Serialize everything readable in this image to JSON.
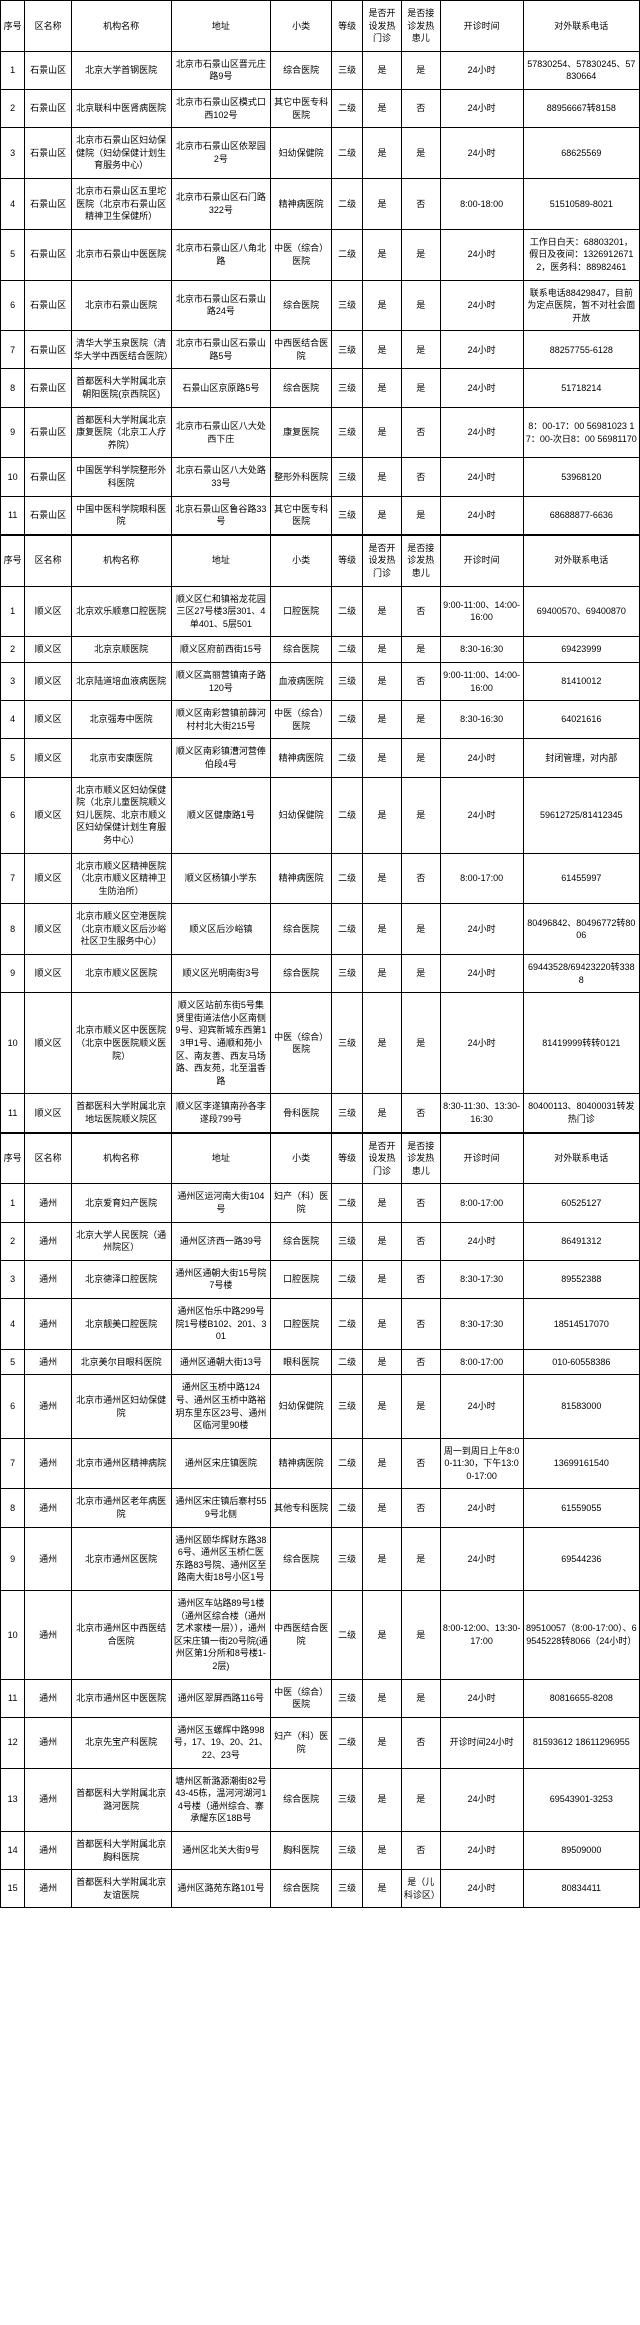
{
  "columns": {
    "num": "序号",
    "district": "区名称",
    "institution": "机构名称",
    "address": "地址",
    "category": "小类",
    "level": "等级",
    "fever_open": "是否开设发热门诊",
    "fever_rx": "是否接诊发热患儿",
    "hours": "开诊时间",
    "tel": "对外联系电话"
  },
  "tables": [
    {
      "rows": [
        {
          "n": "1",
          "d": "石景山区",
          "i": "北京大学首钢医院",
          "a": "北京市石景山区晋元庄路9号",
          "c": "综合医院",
          "l": "三级",
          "f1": "是",
          "f2": "是",
          "h": "24小时",
          "t": "57830254、57830245、57830664"
        },
        {
          "n": "2",
          "d": "石景山区",
          "i": "北京联科中医肾病医院",
          "a": "北京市石景山区模式口西102号",
          "c": "其它中医专科医院",
          "l": "二级",
          "f1": "是",
          "f2": "否",
          "h": "24小时",
          "t": "88956667转8158"
        },
        {
          "n": "3",
          "d": "石景山区",
          "i": "北京市石景山区妇幼保健院（妇幼保健计划生育服务中心）",
          "a": "北京市石景山区依翠园2号",
          "c": "妇幼保健院",
          "l": "二级",
          "f1": "是",
          "f2": "是",
          "h": "24小时",
          "t": "68625569"
        },
        {
          "n": "4",
          "d": "石景山区",
          "i": "北京市石景山区五里坨医院（北京市石景山区精神卫生保健所）",
          "a": "北京市石景山区石门路322号",
          "c": "精神病医院",
          "l": "二级",
          "f1": "是",
          "f2": "否",
          "h": "8:00-18:00",
          "t": "51510589-8021"
        },
        {
          "n": "5",
          "d": "石景山区",
          "i": "北京市石景山中医医院",
          "a": "北京市石景山区八角北路",
          "c": "中医（综合）医院",
          "l": "二级",
          "f1": "是",
          "f2": "是",
          "h": "24小时",
          "t": "工作日白天：68803201，假日及夜间：13269126712，医务科：88982461"
        },
        {
          "n": "6",
          "d": "石景山区",
          "i": "北京市石景山医院",
          "a": "北京市石景山区石景山路24号",
          "c": "综合医院",
          "l": "三级",
          "f1": "是",
          "f2": "是",
          "h": "24小时",
          "t": "联系电话88429847，目前为定点医院，暂不对社会面开放"
        },
        {
          "n": "7",
          "d": "石景山区",
          "i": "清华大学玉泉医院（清华大学中西医结合医院）",
          "a": "北京市石景山区石景山路5号",
          "c": "中西医结合医院",
          "l": "三级",
          "f1": "是",
          "f2": "是",
          "h": "24小时",
          "t": "88257755-6128"
        },
        {
          "n": "8",
          "d": "石景山区",
          "i": "首都医科大学附属北京朝阳医院(京西院区)",
          "a": "石景山区京原路5号",
          "c": "综合医院",
          "l": "三级",
          "f1": "是",
          "f2": "是",
          "h": "24小时",
          "t": "51718214"
        },
        {
          "n": "9",
          "d": "石景山区",
          "i": "首都医科大学附属北京康复医院（北京工人疗养院）",
          "a": "北京市石景山区八大处西下庄",
          "c": "康复医院",
          "l": "三级",
          "f1": "是",
          "f2": "否",
          "h": "24小时",
          "t": "8：00-17：00 56981023 17：00-次日8：00 56981170"
        },
        {
          "n": "10",
          "d": "石景山区",
          "i": "中国医学科学院整形外科医院",
          "a": "北京石景山区八大处路33号",
          "c": "整形外科医院",
          "l": "三级",
          "f1": "是",
          "f2": "否",
          "h": "24小时",
          "t": "53968120"
        },
        {
          "n": "11",
          "d": "石景山区",
          "i": "中国中医科学院眼科医院",
          "a": "北京石景山区鲁谷路33号",
          "c": "其它中医专科医院",
          "l": "三级",
          "f1": "是",
          "f2": "是",
          "h": "24小时",
          "t": "68688877-6636"
        }
      ]
    },
    {
      "rows": [
        {
          "n": "1",
          "d": "顺义区",
          "i": "北京欢乐顺意口腔医院",
          "a": "顺义区仁和镇裕龙花园三区27号楼3层301、4单401、5层501",
          "c": "口腔医院",
          "l": "二级",
          "f1": "是",
          "f2": "否",
          "h": "9:00-11:00、14:00-16:00",
          "t": "69400570、69400870"
        },
        {
          "n": "2",
          "d": "顺义区",
          "i": "北京京顺医院",
          "a": "顺义区府前西街15号",
          "c": "综合医院",
          "l": "二级",
          "f1": "是",
          "f2": "是",
          "h": "8:30-16:30",
          "t": "69423999"
        },
        {
          "n": "3",
          "d": "顺义区",
          "i": "北京陆道培血液病医院",
          "a": "顺义区高丽营镇南子路120号",
          "c": "血液病医院",
          "l": "三级",
          "f1": "是",
          "f2": "否",
          "h": "9:00-11:00、14:00-16:00",
          "t": "81410012"
        },
        {
          "n": "4",
          "d": "顺义区",
          "i": "北京强寿中医院",
          "a": "顺义区南彩营镇前薛河村村北大街215号",
          "c": "中医（综合）医院",
          "l": "二级",
          "f1": "是",
          "f2": "是",
          "h": "8:30-16:30",
          "t": "64021616"
        },
        {
          "n": "5",
          "d": "顺义区",
          "i": "北京市安康医院",
          "a": "顺义区南彩镇漕河营俸伯段4号",
          "c": "精神病医院",
          "l": "二级",
          "f1": "是",
          "f2": "是",
          "h": "24小时",
          "t": "封闭管理，对内部"
        },
        {
          "n": "6",
          "d": "顺义区",
          "i": "北京市顺义区妇幼保健院（北京儿童医院顺义妇儿医院、北京市顺义区妇幼保健计划生育服务中心）",
          "a": "顺义区健康路1号",
          "c": "妇幼保健院",
          "l": "二级",
          "f1": "是",
          "f2": "是",
          "h": "24小时",
          "t": "59612725/81412345"
        },
        {
          "n": "7",
          "d": "顺义区",
          "i": "北京市顺义区精神医院（北京市顺义区精神卫生防治所）",
          "a": "顺义区杨镇小学东",
          "c": "精神病医院",
          "l": "二级",
          "f1": "是",
          "f2": "否",
          "h": "8:00-17:00",
          "t": "61455997"
        },
        {
          "n": "8",
          "d": "顺义区",
          "i": "北京市顺义区空港医院（北京市顺义区后沙峪社区卫生服务中心）",
          "a": "顺义区后沙峪镇",
          "c": "综合医院",
          "l": "二级",
          "f1": "是",
          "f2": "是",
          "h": "24小时",
          "t": "80496842、80496772转8006"
        },
        {
          "n": "9",
          "d": "顺义区",
          "i": "北京市顺义区医院",
          "a": "顺义区光明南街3号",
          "c": "综合医院",
          "l": "三级",
          "f1": "是",
          "f2": "是",
          "h": "24小时",
          "t": "69443528/69423220转3388"
        },
        {
          "n": "10",
          "d": "顺义区",
          "i": "北京市顺义区中医医院（北京中医医院顺义医院）",
          "a": "顺义区站前东街5号集贤里街道法信小区南侧9号、迎宾新城东西第13甲1号、通顺和苑小区、南友善、西友马场路、西友苑，北至温香路",
          "c": "中医（综合）医院",
          "l": "三级",
          "f1": "是",
          "f2": "是",
          "h": "24小时",
          "t": "81419999转转0121"
        },
        {
          "n": "11",
          "d": "顺义区",
          "i": "首都医科大学附属北京地坛医院顺义院区",
          "a": "顺义区李遂镇南孙各李遂段799号",
          "c": "骨科医院",
          "l": "三级",
          "f1": "是",
          "f2": "否",
          "h": "8:30-11:30、13:30-16:30",
          "t": "80400113、80400031转发热门诊"
        }
      ]
    },
    {
      "rows": [
        {
          "n": "1",
          "d": "通州",
          "i": "北京爱育妇产医院",
          "a": "通州区运河南大街104号",
          "c": "妇产（科）医院",
          "l": "二级",
          "f1": "是",
          "f2": "否",
          "h": "8:00-17:00",
          "t": "60525127"
        },
        {
          "n": "2",
          "d": "通州",
          "i": "北京大学人民医院（通州院区）",
          "a": "通州区济西一路39号",
          "c": "综合医院",
          "l": "三级",
          "f1": "是",
          "f2": "否",
          "h": "24小时",
          "t": "86491312"
        },
        {
          "n": "3",
          "d": "通州",
          "i": "北京德泽口腔医院",
          "a": "通州区通朝大街15号院7号楼",
          "c": "口腔医院",
          "l": "二级",
          "f1": "是",
          "f2": "否",
          "h": "8:30-17:30",
          "t": "89552388"
        },
        {
          "n": "4",
          "d": "通州",
          "i": "北京靓美口腔医院",
          "a": "通州区怡乐中路299号院1号楼B102、201、301",
          "c": "口腔医院",
          "l": "二级",
          "f1": "是",
          "f2": "否",
          "h": "8:30-17:30",
          "t": "18514517070"
        },
        {
          "n": "5",
          "d": "通州",
          "i": "北京美尔目眼科医院",
          "a": "通州区通朝大街13号",
          "c": "眼科医院",
          "l": "二级",
          "f1": "是",
          "f2": "否",
          "h": "8:00-17:00",
          "t": "010-60558386"
        },
        {
          "n": "6",
          "d": "通州",
          "i": "北京市通州区妇幼保健院",
          "a": "通州区玉桥中路124号、通州区玉桥中路裕玥东里东区23号、通州区临河里90楼",
          "c": "妇幼保健院",
          "l": "三级",
          "f1": "是",
          "f2": "是",
          "h": "24小时",
          "t": "81583000"
        },
        {
          "n": "7",
          "d": "通州",
          "i": "北京市通州区精神病院",
          "a": "通州区宋庄镇医院",
          "c": "精神病医院",
          "l": "二级",
          "f1": "是",
          "f2": "否",
          "h": "周一到周日上午8:00-11:30，下午13:00-17:00",
          "t": "13699161540"
        },
        {
          "n": "8",
          "d": "通州",
          "i": "北京市通州区老年病医院",
          "a": "通州区宋庄镇后寨村559号北侧",
          "c": "其他专科医院",
          "l": "二级",
          "f1": "是",
          "f2": "否",
          "h": "24小时",
          "t": "61559055"
        },
        {
          "n": "9",
          "d": "通州",
          "i": "北京市通州区医院",
          "a": "通州区颐华辉财东路386号、通州区玉桥仁医东路83号院、通州区至路南大街18号小区1号",
          "c": "综合医院",
          "l": "三级",
          "f1": "是",
          "f2": "是",
          "h": "24小时",
          "t": "69544236"
        },
        {
          "n": "10",
          "d": "通州",
          "i": "北京市通州区中西医结合医院",
          "a": "通州区车站路89号1楼（通州区综合楼（通州艺术家楼一层）），通州区宋庄镇一街20号院(通州区第1分所和8号楼1-2层)",
          "c": "中西医结合医院",
          "l": "二级",
          "f1": "是",
          "f2": "是",
          "h": "8:00-12:00、13:30-17:00",
          "t": "89510057（8:00-17:00）、69545228转8066（24小时）"
        },
        {
          "n": "11",
          "d": "通州",
          "i": "北京市通州区中医医院",
          "a": "通州区翠屏西路116号",
          "c": "中医（综合）医院",
          "l": "三级",
          "f1": "是",
          "f2": "是",
          "h": "24小时",
          "t": "80816655-8208"
        },
        {
          "n": "12",
          "d": "通州",
          "i": "北京先宝产科医院",
          "a": "通州区玉螺辉中路998号，17、19、20、21、22、23号",
          "c": "妇产（科）医院",
          "l": "二级",
          "f1": "是",
          "f2": "否",
          "h": "开诊时间24小时",
          "t": "81593612 18611296955"
        },
        {
          "n": "13",
          "d": "通州",
          "i": "首都医科大学附属北京潞河医院",
          "a": "塘州区新潞源潮街82号43-45栋，温河河湖河14号楼（通州综合、寨承耀东区18B号",
          "c": "综合医院",
          "l": "三级",
          "f1": "是",
          "f2": "是",
          "h": "24小时",
          "t": "69543901-3253"
        },
        {
          "n": "14",
          "d": "通州",
          "i": "首都医科大学附属北京胸科医院",
          "a": "通州区北关大街9号",
          "c": "胸科医院",
          "l": "三级",
          "f1": "是",
          "f2": "否",
          "h": "24小时",
          "t": "89509000"
        },
        {
          "n": "15",
          "d": "通州",
          "i": "首都医科大学附属北京友谊医院",
          "a": "通州区潞苑东路101号",
          "c": "综合医院",
          "l": "三级",
          "f1": "是",
          "f2": "是（儿科诊区）",
          "h": "24小时",
          "t": "80834411"
        }
      ]
    }
  ]
}
